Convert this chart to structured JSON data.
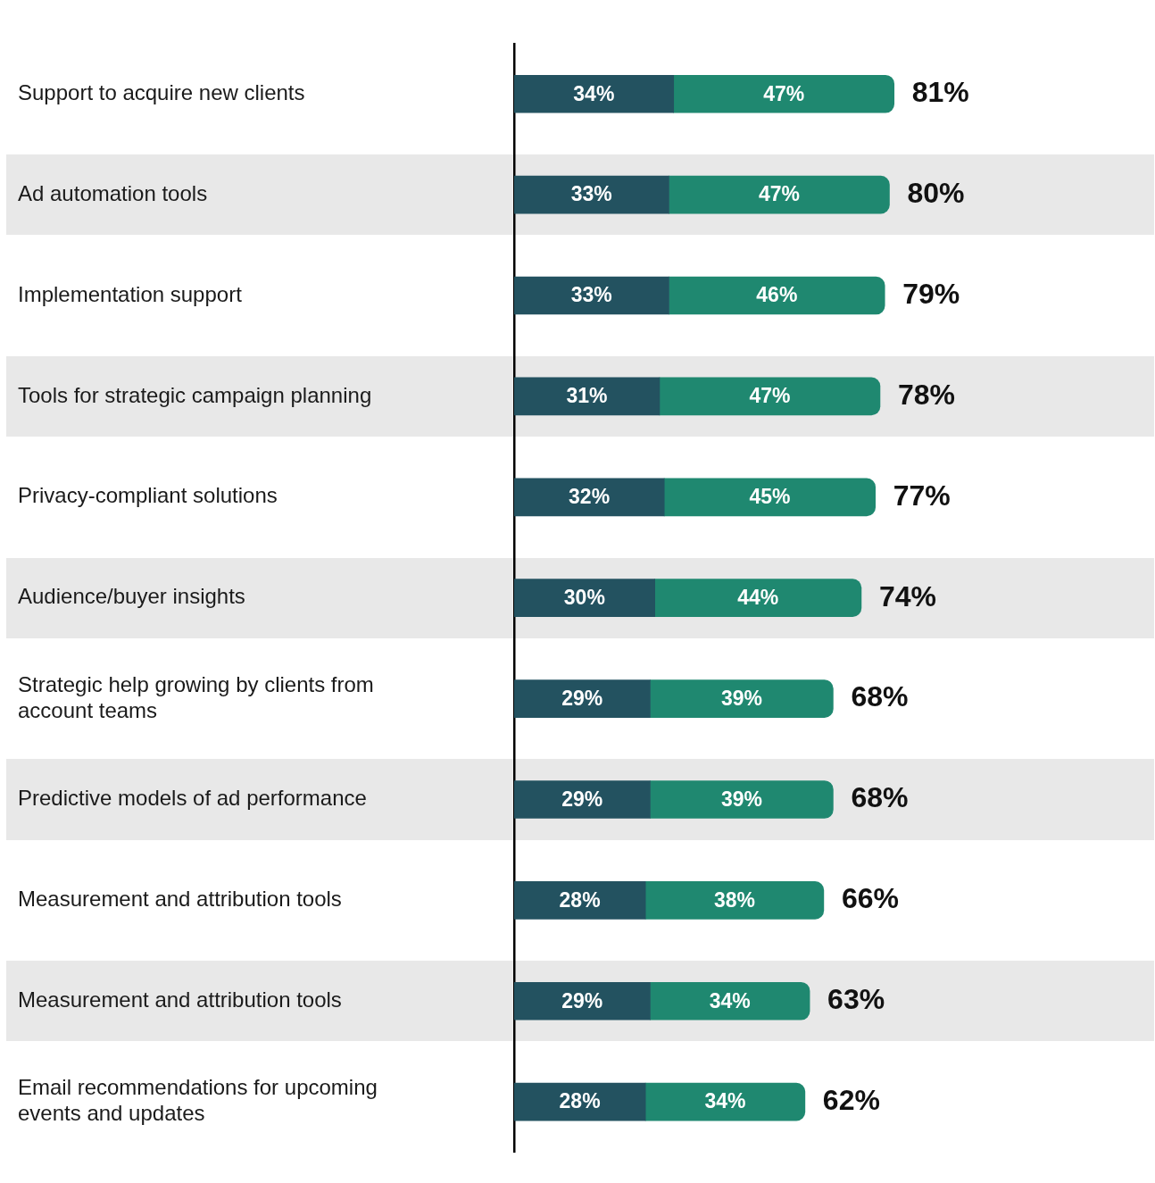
{
  "chart_data": {
    "type": "bar",
    "orientation": "horizontal",
    "stacked": true,
    "legend": false,
    "grid": false,
    "tick_labels": "y",
    "categories": [
      "Support to acquire new clients",
      "Ad automation tools",
      "Implementation support",
      "Tools for strategic campaign planning",
      "Privacy-compliant solutions",
      "Audience/buyer insights",
      "Strategic help growing by clients from account teams",
      "Predictive models of ad performance",
      "Measurement and attribution tools",
      "Measurement and attribution tools",
      "Email recommendations for upcoming events and updates"
    ],
    "series": [
      {
        "color": "#235260",
        "values": [
          34,
          33,
          33,
          31,
          32,
          30,
          29,
          29,
          28,
          29,
          28
        ],
        "value_labels": [
          "34%",
          "33%",
          "33%",
          "31%",
          "32%",
          "30%",
          "29%",
          "29%",
          "28%",
          "29%",
          "28%"
        ]
      },
      {
        "color": "#1f8870",
        "values": [
          47,
          47,
          46,
          47,
          45,
          44,
          39,
          39,
          38,
          34,
          34
        ],
        "value_labels": [
          "47%",
          "47%",
          "46%",
          "47%",
          "45%",
          "44%",
          "39%",
          "39%",
          "38%",
          "34%",
          "34%"
        ]
      }
    ],
    "totals": [
      "81%",
      "80%",
      "79%",
      "78%",
      "77%",
      "74%",
      "68%",
      "68%",
      "66%",
      "63%",
      "62%"
    ]
  }
}
